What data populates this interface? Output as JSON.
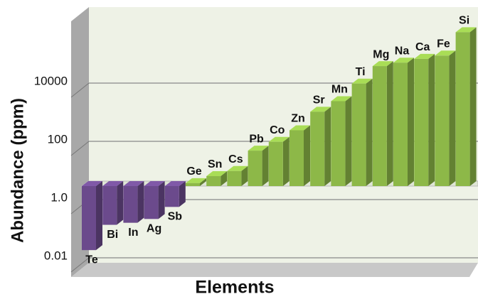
{
  "chart_data": {
    "type": "bar",
    "x_label": "Elements",
    "y_label": "Abundance (ppm)",
    "categories": [
      "Te",
      "Bi",
      "In",
      "Ag",
      "Sb",
      "Ge",
      "Sn",
      "Cs",
      "Pb",
      "Co",
      "Zn",
      "Sr",
      "Mn",
      "Ti",
      "Mg",
      "Na",
      "Ca",
      "Fe",
      "Si"
    ],
    "values": [
      0.023,
      0.17,
      0.2,
      0.27,
      0.7,
      4.6,
      8,
      12,
      60,
      120,
      300,
      1300,
      3000,
      12000,
      48000,
      63000,
      85000,
      110000,
      700000
    ],
    "colors": [
      "#6b4a8c",
      "#6b4a8c",
      "#6b4a8c",
      "#6b4a8c",
      "#6b4a8c",
      "#8db848",
      "#8db848",
      "#8db848",
      "#8db848",
      "#8db848",
      "#8db848",
      "#8db848",
      "#8db848",
      "#8db848",
      "#8db848",
      "#8db848",
      "#8db848",
      "#8db848",
      "#8db848"
    ],
    "log_scale": true,
    "ylim": [
      0.01,
      1000000
    ],
    "yticks": [
      0.01,
      {
        "value": 1,
        "label": "1.0"
      },
      100,
      10000
    ],
    "grid": true
  }
}
